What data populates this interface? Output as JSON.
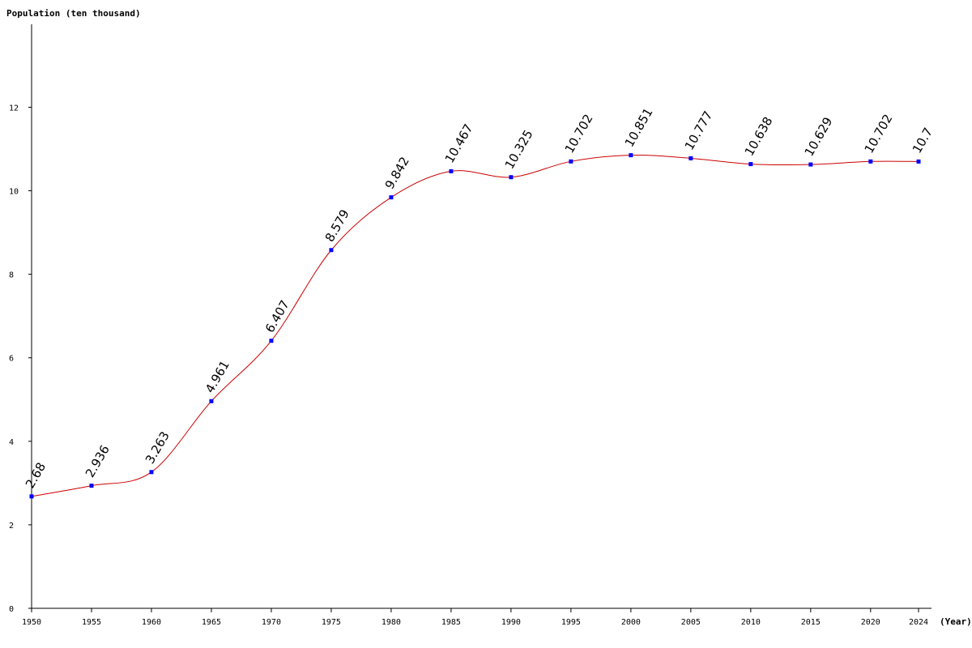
{
  "chart_data": {
    "type": "line",
    "ylabel": "Population (ten thousand)",
    "xlabel": "(Year)",
    "x": [
      "1950",
      "1955",
      "1960",
      "1965",
      "1970",
      "1975",
      "1980",
      "1985",
      "1990",
      "1995",
      "2000",
      "2005",
      "2010",
      "2015",
      "2020",
      "2024"
    ],
    "series": [
      {
        "values": [
          2.68,
          2.936,
          3.263,
          4.961,
          6.407,
          8.579,
          9.842,
          10.467,
          10.325,
          10.702,
          10.851,
          10.777,
          10.638,
          10.629,
          10.702,
          10.7
        ],
        "labels": [
          "2.68",
          "2.936",
          "3.263",
          "4.961",
          "6.407",
          "8.579",
          "9.842",
          "10.467",
          "10.325",
          "10.702",
          "10.851",
          "10.777",
          "10.638",
          "10.629",
          "10.702",
          "10.7"
        ]
      }
    ],
    "y_ticks": [
      "0",
      "2",
      "4",
      "6",
      "8",
      "10",
      "12"
    ],
    "ylim": [
      0,
      14
    ],
    "grid": false,
    "colors": {
      "line": "#cc0000",
      "marker": "#0000ff",
      "axis": "#000000"
    }
  }
}
